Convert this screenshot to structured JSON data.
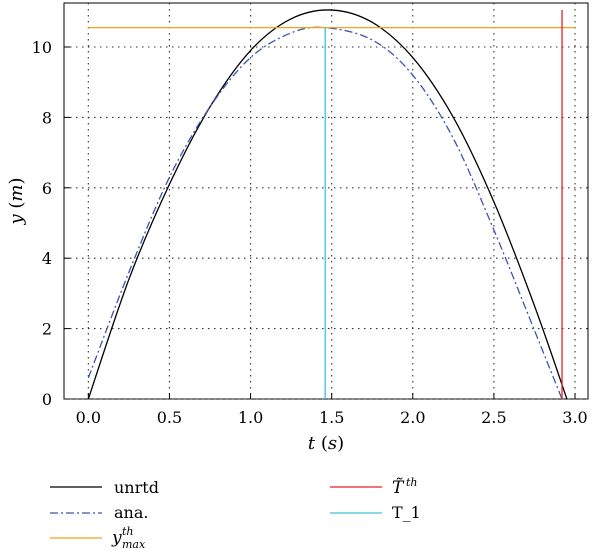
{
  "chart_data": {
    "type": "line",
    "xlabel": "t (s)",
    "ylabel": "y (m)",
    "xlabel_parts": {
      "var": "t",
      "unit": "s"
    },
    "ylabel_parts": {
      "var": "y",
      "unit": "m"
    },
    "xlim": [
      -0.15,
      3.08
    ],
    "ylim": [
      0,
      11.25
    ],
    "xticks": [
      "0.0",
      "0.5",
      "1.0",
      "1.5",
      "2.0",
      "2.5",
      "3.0"
    ],
    "xtick_values": [
      0.0,
      0.5,
      1.0,
      1.5,
      2.0,
      2.5,
      3.0
    ],
    "yticks": [
      "0",
      "2",
      "4",
      "6",
      "8",
      "10"
    ],
    "ytick_values": [
      0,
      2,
      4,
      6,
      8,
      10
    ],
    "grid": true,
    "legend_position": "bottom",
    "series": [
      {
        "name": "unrtd",
        "color": "#000000",
        "style": "solid",
        "x": [
          0.0,
          0.25,
          0.5,
          0.75,
          1.0,
          1.25,
          1.5,
          1.75,
          2.0,
          2.25,
          2.5,
          2.75,
          2.95
        ],
        "y": [
          0.0,
          3.4,
          6.1,
          8.3,
          9.9,
          10.8,
          11.05,
          10.7,
          9.7,
          8.0,
          5.6,
          2.65,
          0.0
        ]
      },
      {
        "name": "ana.",
        "color": "#3a55b5",
        "style": "dashdot",
        "x": [
          0.0,
          0.25,
          0.5,
          0.75,
          1.0,
          1.25,
          1.46,
          1.75,
          2.0,
          2.25,
          2.5,
          2.75,
          2.92
        ],
        "y": [
          0.6,
          3.6,
          6.3,
          8.3,
          9.7,
          10.4,
          10.55,
          10.2,
          9.2,
          7.4,
          4.8,
          1.95,
          0.0
        ]
      },
      {
        "name": "y_max^th",
        "legend_label": {
          "base": "y",
          "sup": "th",
          "sub": "max"
        },
        "color": "#f0a418",
        "style": "solid",
        "x": [
          0.0,
          3.0
        ],
        "y": [
          10.55,
          10.55
        ]
      },
      {
        "name": "~T^th",
        "legend_label": {
          "base": "T̃",
          "sup": "th"
        },
        "color": "#e8212a",
        "style": "solid",
        "x": [
          2.92,
          2.92
        ],
        "y": [
          0.0,
          11.05
        ]
      },
      {
        "name": "T_1",
        "legend_label": {
          "base": "T_1"
        },
        "color": "#3cc4d8",
        "style": "solid",
        "x": [
          1.46,
          1.46
        ],
        "y": [
          0.0,
          10.55
        ]
      }
    ]
  }
}
